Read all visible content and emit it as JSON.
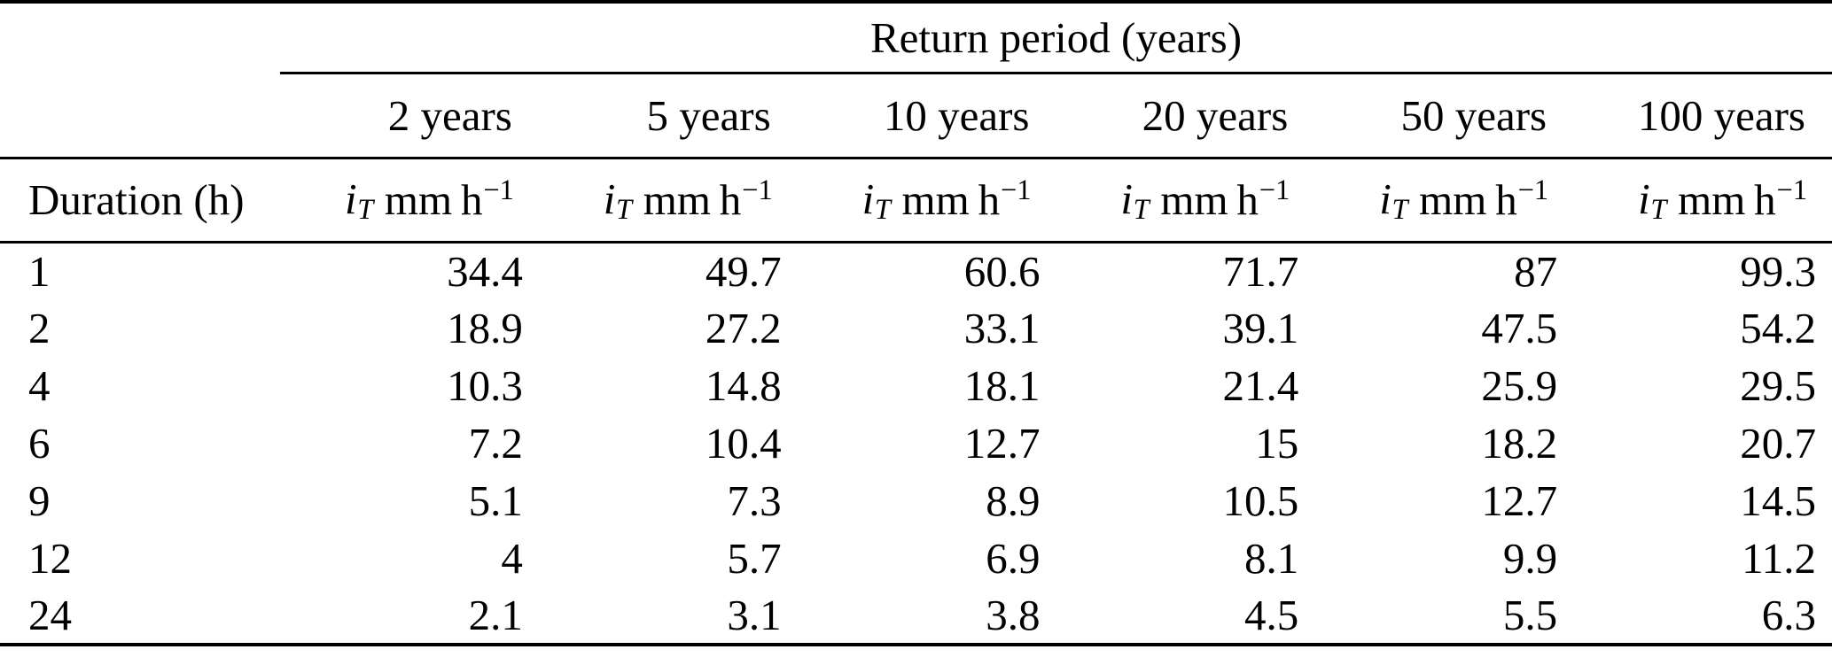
{
  "table": {
    "group_header": "Return period (years)",
    "corner_label": "Duration (h)",
    "return_periods": [
      "2 years",
      "5 years",
      "10 years",
      "20 years",
      "50 years",
      "100 years"
    ],
    "unit_header": {
      "var": "i",
      "sub": "T",
      "unit": "mm h",
      "sup": "−1"
    },
    "rows": [
      {
        "duration": "1",
        "values": [
          "34.4",
          "49.7",
          "60.6",
          "71.7",
          "87",
          "99.3"
        ]
      },
      {
        "duration": "2",
        "values": [
          "18.9",
          "27.2",
          "33.1",
          "39.1",
          "47.5",
          "54.2"
        ]
      },
      {
        "duration": "4",
        "values": [
          "10.3",
          "14.8",
          "18.1",
          "21.4",
          "25.9",
          "29.5"
        ]
      },
      {
        "duration": "6",
        "values": [
          "7.2",
          "10.4",
          "12.7",
          "15",
          "18.2",
          "20.7"
        ]
      },
      {
        "duration": "9",
        "values": [
          "5.1",
          "7.3",
          "8.9",
          "10.5",
          "12.7",
          "14.5"
        ]
      },
      {
        "duration": "12",
        "values": [
          "4",
          "5.7",
          "6.9",
          "8.1",
          "9.9",
          "11.2"
        ]
      },
      {
        "duration": "24",
        "values": [
          "2.1",
          "3.1",
          "3.8",
          "4.5",
          "5.5",
          "6.3"
        ]
      }
    ],
    "colors": {
      "text": "#000000",
      "rule": "#000000",
      "background": "#ffffff"
    }
  }
}
